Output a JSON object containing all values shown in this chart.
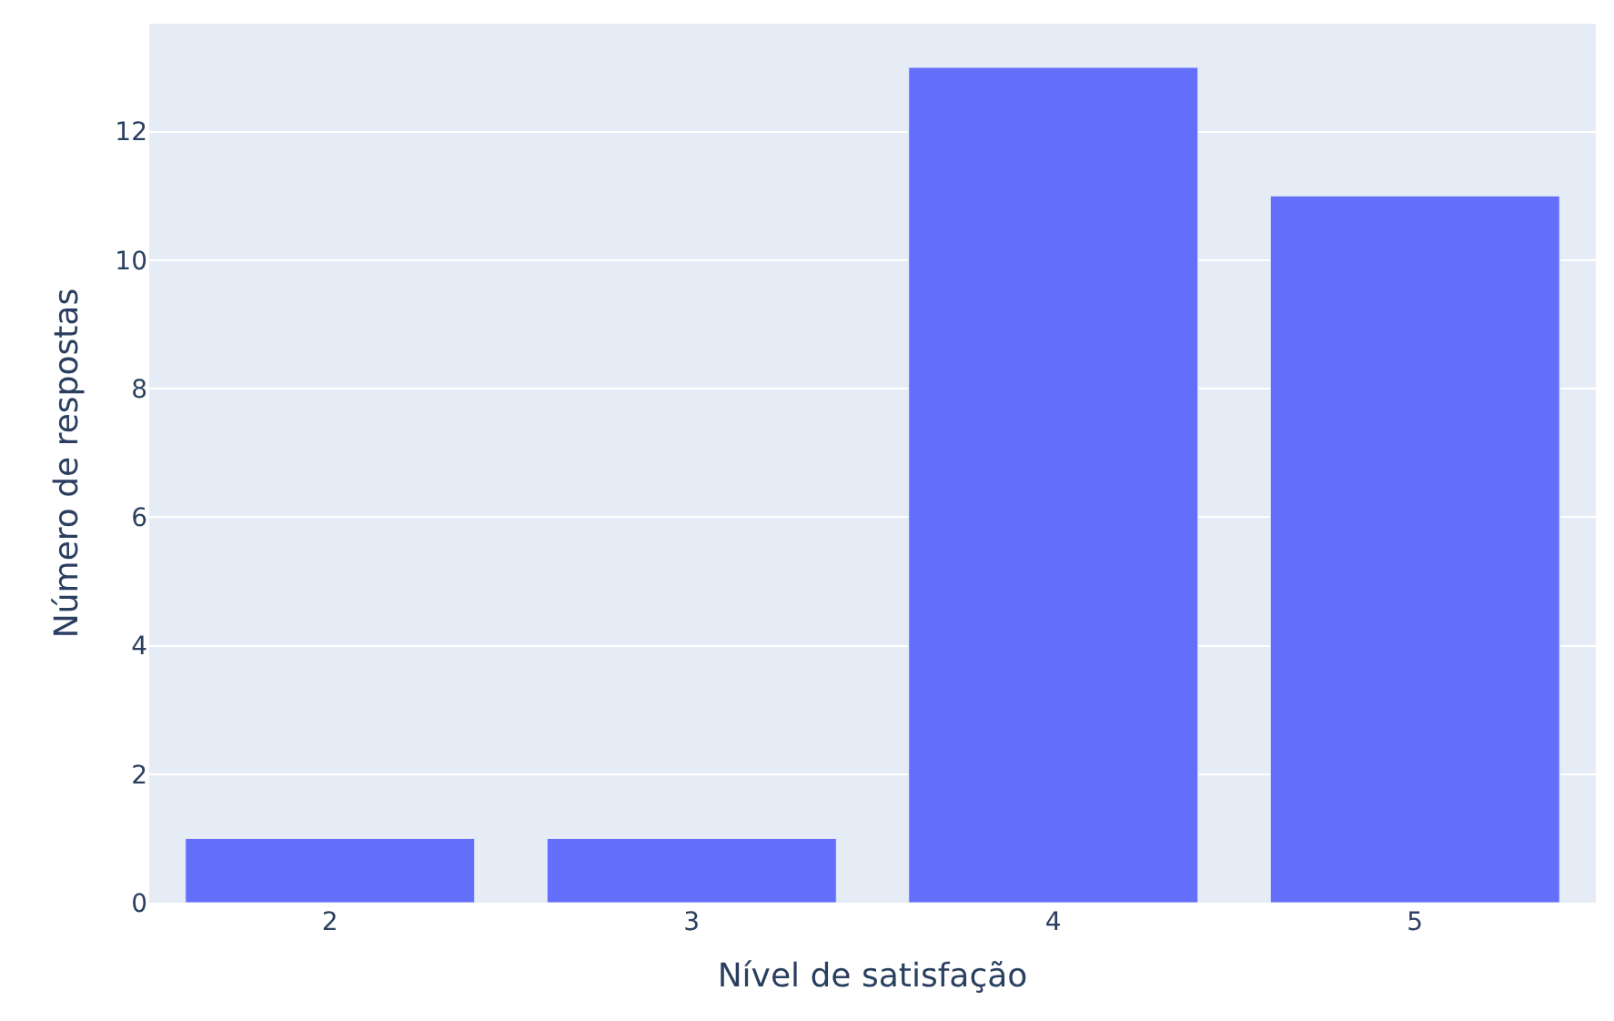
{
  "chart_data": {
    "type": "bar",
    "xlabel": "Nível de satisfação",
    "ylabel": "Número de respostas",
    "categories": [
      "2",
      "3",
      "4",
      "5"
    ],
    "values": [
      1,
      1,
      13,
      11
    ],
    "color": "#636efa",
    "ylim": [
      0,
      13.68
    ],
    "yticks": [
      0,
      2,
      4,
      6,
      8,
      10,
      12
    ],
    "grid": "y"
  }
}
